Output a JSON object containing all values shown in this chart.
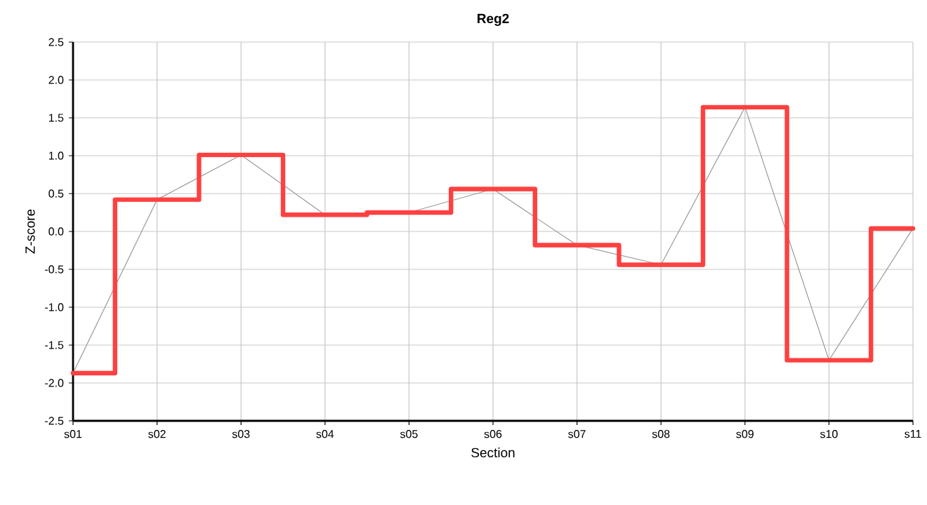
{
  "chart_data": {
    "type": "line",
    "title": "Reg2",
    "xlabel": "Section",
    "ylabel": "Z-score",
    "categories": [
      "s01",
      "s02",
      "s03",
      "s04",
      "s05",
      "s06",
      "s07",
      "s08",
      "s09",
      "s10",
      "s11"
    ],
    "series": [
      {
        "color": "#999999",
        "values": [
          -1.87,
          0.42,
          1.01,
          0.22,
          0.25,
          0.56,
          -0.18,
          -0.44,
          1.64,
          -1.7,
          0.04
        ]
      },
      {
        "type": "step",
        "color": "#ff4040",
        "values": [
          -1.87,
          0.42,
          1.01,
          0.22,
          0.25,
          0.56,
          -0.18,
          -0.44,
          1.64,
          -1.7,
          0.04
        ]
      }
    ],
    "ylim": [
      -2.5,
      2.5
    ],
    "yticks": [
      {
        "value": -2.5,
        "label": "-2.5"
      },
      {
        "value": -2.0,
        "label": "-2.0"
      },
      {
        "value": -1.5,
        "label": "-1.5"
      },
      {
        "value": -1.0,
        "label": "-1.0"
      },
      {
        "value": -0.5,
        "label": "-0.5"
      },
      {
        "value": 0,
        "label": "0.0"
      },
      {
        "value": 0.5,
        "label": "0.5"
      },
      {
        "value": 1.0,
        "label": "1.0"
      },
      {
        "value": 1.5,
        "label": "1.5"
      },
      {
        "value": 2.0,
        "label": "2.0"
      },
      {
        "value": 2.5,
        "label": "2.5"
      }
    ],
    "grid": true
  }
}
